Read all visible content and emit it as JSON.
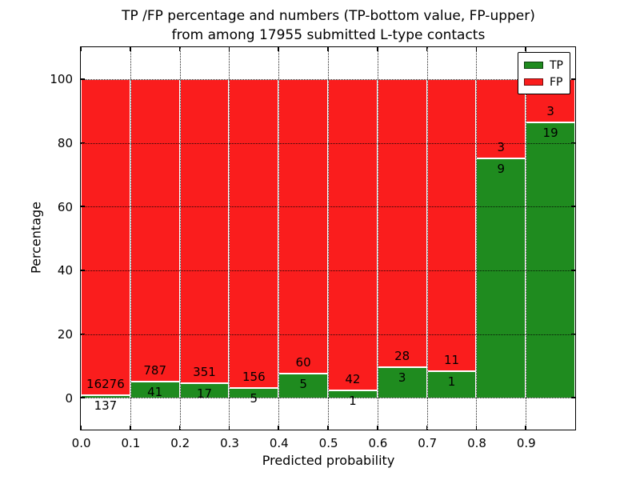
{
  "title": {
    "line1": "TP /FP percentage and numbers (TP-bottom value, FP-upper)",
    "line2": "from among 17955 submitted L-type contacts"
  },
  "chart_data": {
    "type": "bar",
    "stacked": true,
    "normalized_to": 100,
    "bin_edges": [
      0.0,
      0.1,
      0.2,
      0.3,
      0.4,
      0.5,
      0.6,
      0.7,
      0.8,
      0.9,
      1.0
    ],
    "categories": [
      "0.0-0.1",
      "0.1-0.2",
      "0.2-0.3",
      "0.3-0.4",
      "0.4-0.5",
      "0.5-0.6",
      "0.6-0.7",
      "0.7-0.8",
      "0.8-0.9",
      "0.9-1.0"
    ],
    "series": [
      {
        "name": "TP",
        "color": "#1f8b1f",
        "counts": [
          137,
          41,
          17,
          5,
          5,
          1,
          3,
          1,
          9,
          19
        ]
      },
      {
        "name": "FP",
        "color": "#fa1d1d",
        "counts": [
          16276,
          787,
          351,
          156,
          60,
          42,
          28,
          11,
          3,
          3
        ]
      }
    ],
    "tp_percentages": [
      0.83,
      4.95,
      4.62,
      3.11,
      7.69,
      2.33,
      9.68,
      8.33,
      75.0,
      86.36
    ],
    "total_contacts": 17955,
    "xlabel": "Predicted probability",
    "ylabel": "Percentage",
    "xlim": [
      0.0,
      1.0
    ],
    "ylim": [
      -10,
      110
    ],
    "xticks": [
      "0.0",
      "0.1",
      "0.2",
      "0.3",
      "0.4",
      "0.5",
      "0.6",
      "0.7",
      "0.8",
      "0.9"
    ],
    "yticks": [
      "0",
      "20",
      "40",
      "60",
      "80",
      "100"
    ],
    "grid": "dotted",
    "bar_edge_color": "#ffffff",
    "legend": {
      "position": "upper-right",
      "entries": [
        {
          "label": "TP",
          "color": "#1f8b1f"
        },
        {
          "label": "FP",
          "color": "#fa1d1d"
        }
      ]
    }
  }
}
